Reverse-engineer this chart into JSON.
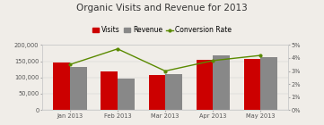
{
  "title": "Organic Visits and Revenue for 2013",
  "categories": [
    "Jan 2013",
    "Feb 2013",
    "Mar 2013",
    "Apr 2013",
    "May 2013"
  ],
  "visits": [
    145000,
    118000,
    108000,
    155000,
    158000
  ],
  "revenue": [
    132000,
    98000,
    110000,
    168000,
    163000
  ],
  "conversion_rate": [
    3.5,
    4.7,
    3.0,
    3.8,
    4.2
  ],
  "bar_width": 0.35,
  "visits_color": "#cc0000",
  "revenue_color": "#888888",
  "line_color": "#5a8a00",
  "background_color": "#f0ede8",
  "ylim_left": [
    0,
    200000
  ],
  "ylim_right": [
    0,
    5
  ],
  "yticks_left": [
    0,
    50000,
    100000,
    150000,
    200000
  ],
  "yticks_right": [
    0,
    1,
    2,
    3,
    4,
    5
  ],
  "ytick_labels_left": [
    "0",
    "50,000",
    "100,000",
    "150,000",
    "200,000"
  ],
  "ytick_labels_right": [
    "0%",
    "1%",
    "2%",
    "3%",
    "4%",
    "5%"
  ],
  "legend_visits": "Visits",
  "legend_revenue": "Revenue",
  "legend_conv": "Conversion Rate",
  "title_fontsize": 7.5,
  "tick_fontsize": 4.8,
  "legend_fontsize": 5.5
}
